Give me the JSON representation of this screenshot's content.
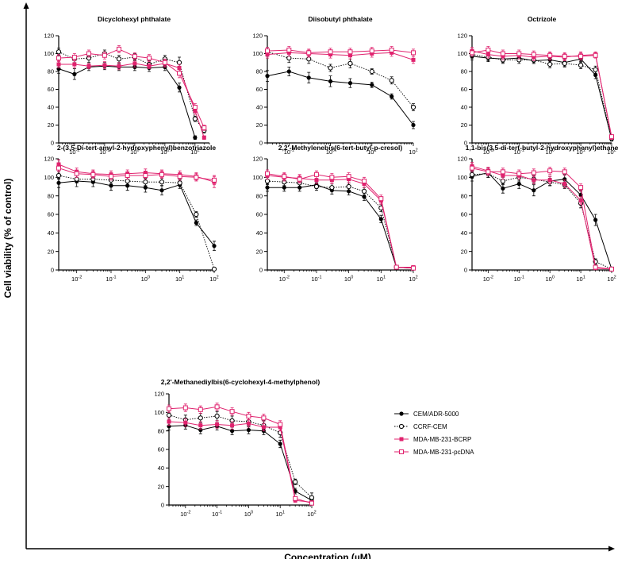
{
  "figure": {
    "ylabel": "Cell viability (% of control)",
    "xlabel": "Concentration (µM)"
  },
  "legend": [
    {
      "name": "CEM/ADR-5000",
      "color": "#000000",
      "marker": "filled-circle",
      "line": "solid"
    },
    {
      "name": "CCRF-CEM",
      "color": "#000000",
      "marker": "open-circle",
      "line": "dotted"
    },
    {
      "name": "MDA-MB-231-BCRP",
      "color": "#e0226e",
      "marker": "filled-square",
      "line": "solid"
    },
    {
      "name": "MDA-MB-231-pcDNA",
      "color": "#e0226e",
      "marker": "open-square",
      "line": "solid"
    }
  ],
  "chart_data": [
    {
      "type": "line",
      "title": "Dicyclohexyl phthalate",
      "xscale": "log",
      "xlim": [
        0.003,
        300
      ],
      "ylim": [
        0,
        120
      ],
      "yticks": [
        0,
        20,
        40,
        60,
        80,
        100,
        120
      ],
      "xticks": [
        {
          "value": 0.01,
          "base": "10",
          "exp": "-2"
        },
        {
          "value": 0.1,
          "base": "10",
          "exp": "-1"
        },
        {
          "value": 1,
          "base": "10",
          "exp": "0"
        },
        {
          "value": 10,
          "base": "10",
          "exp": "1"
        },
        {
          "value": 100,
          "base": "10",
          "exp": "2"
        }
      ],
      "x": [
        0.003,
        0.01,
        0.03,
        0.1,
        0.3,
        1,
        3,
        10,
        30,
        100,
        200
      ],
      "series": [
        {
          "name": "CEM/ADR-5000",
          "values": [
            83,
            77,
            85,
            86,
            85,
            85,
            84,
            85,
            62,
            6,
            null
          ],
          "errors": [
            5,
            6,
            4,
            4,
            4,
            4,
            4,
            4,
            5,
            2,
            null
          ]
        },
        {
          "name": "CCRF-CEM",
          "values": [
            102,
            94,
            95,
            100,
            94,
            96,
            88,
            94,
            90,
            27,
            14
          ],
          "errors": [
            4,
            4,
            5,
            4,
            4,
            4,
            4,
            4,
            6,
            3,
            3
          ]
        },
        {
          "name": "MDA-MB-231-BCRP",
          "values": [
            88,
            88,
            86,
            87,
            86,
            89,
            86,
            89,
            84,
            36,
            6
          ],
          "errors": [
            4,
            4,
            3,
            4,
            4,
            4,
            3,
            4,
            4,
            4,
            2
          ]
        },
        {
          "name": "MDA-MB-231-pcDNA",
          "values": [
            95,
            96,
            100,
            98,
            105,
            97,
            95,
            90,
            78,
            40,
            17
          ],
          "errors": [
            4,
            4,
            4,
            4,
            4,
            4,
            4,
            4,
            5,
            4,
            3
          ]
        }
      ]
    },
    {
      "type": "line",
      "title": "Diisobutyl phthalate",
      "xscale": "log",
      "xlim": [
        0.03,
        100
      ],
      "ylim": [
        0,
        120
      ],
      "yticks": [
        0,
        20,
        40,
        60,
        80,
        100,
        120
      ],
      "xticks": [
        {
          "value": 0.1,
          "base": "10",
          "exp": "-1"
        },
        {
          "value": 1,
          "base": "10",
          "exp": "0"
        },
        {
          "value": 10,
          "base": "10",
          "exp": "1"
        },
        {
          "value": 100,
          "base": "10",
          "exp": "2"
        }
      ],
      "x": [
        0.03,
        0.1,
        0.3,
        1,
        3,
        10,
        30,
        100
      ],
      "series": [
        {
          "name": "CEM/ADR-5000",
          "values": [
            75,
            80,
            73,
            69,
            67,
            65,
            52,
            20
          ],
          "errors": [
            6,
            5,
            6,
            6,
            5,
            3,
            3,
            4
          ]
        },
        {
          "name": "CCRF-CEM",
          "values": [
            102,
            95,
            94,
            84,
            89,
            80,
            70,
            40
          ],
          "errors": [
            5,
            5,
            5,
            4,
            5,
            3,
            4,
            4
          ]
        },
        {
          "name": "MDA-MB-231-BCRP",
          "values": [
            99,
            101,
            100,
            99,
            98,
            100,
            101,
            93
          ],
          "errors": [
            4,
            4,
            4,
            4,
            4,
            4,
            4,
            4
          ]
        },
        {
          "name": "MDA-MB-231-pcDNA",
          "values": [
            103,
            104,
            101,
            102,
            102,
            103,
            104,
            101
          ],
          "errors": [
            4,
            4,
            4,
            4,
            4,
            4,
            4,
            4
          ]
        }
      ]
    },
    {
      "type": "line",
      "title": "Octrizole",
      "xscale": "log",
      "xlim": [
        0.003,
        100
      ],
      "ylim": [
        0,
        120
      ],
      "yticks": [
        0,
        20,
        40,
        60,
        80,
        100,
        120
      ],
      "xticks": [
        {
          "value": 0.01,
          "base": "10",
          "exp": "-2"
        },
        {
          "value": 0.1,
          "base": "10",
          "exp": "-1"
        },
        {
          "value": 1,
          "base": "10",
          "exp": "0"
        },
        {
          "value": 10,
          "base": "10",
          "exp": "1"
        },
        {
          "value": 100,
          "base": "10",
          "exp": "2"
        }
      ],
      "x": [
        0.003,
        0.01,
        0.03,
        0.1,
        0.3,
        1,
        3,
        10,
        30,
        100
      ],
      "series": [
        {
          "name": "CEM/ADR-5000",
          "values": [
            97,
            95,
            94,
            95,
            92,
            93,
            90,
            94,
            76,
            4
          ],
          "errors": [
            4,
            4,
            4,
            4,
            3,
            4,
            4,
            4,
            4,
            2
          ]
        },
        {
          "name": "CCRF-CEM",
          "values": [
            99,
            96,
            93,
            93,
            93,
            88,
            89,
            87,
            82,
            5
          ],
          "errors": [
            4,
            4,
            4,
            4,
            4,
            4,
            4,
            4,
            4,
            2
          ]
        },
        {
          "name": "MDA-MB-231-BCRP",
          "values": [
            103,
            99,
            97,
            98,
            96,
            97,
            96,
            98,
            99,
            6
          ],
          "errors": [
            4,
            4,
            4,
            4,
            4,
            4,
            4,
            4,
            3,
            2
          ]
        },
        {
          "name": "MDA-MB-231-pcDNA",
          "values": [
            101,
            104,
            100,
            100,
            99,
            98,
            97,
            97,
            98,
            7
          ],
          "errors": [
            4,
            4,
            4,
            4,
            4,
            4,
            4,
            4,
            3,
            2
          ]
        }
      ]
    },
    {
      "type": "line",
      "title": "2-(3,5-Di-tert-amyl-2-hydroxyphenyl)benzotriazole",
      "xscale": "log",
      "xlim": [
        0.003,
        100
      ],
      "ylim": [
        0,
        120
      ],
      "yticks": [
        0,
        20,
        40,
        60,
        80,
        100,
        120
      ],
      "xticks": [
        {
          "value": 0.01,
          "base": "10",
          "exp": "-2"
        },
        {
          "value": 0.1,
          "base": "10",
          "exp": "-1"
        },
        {
          "value": 1,
          "base": "10",
          "exp": "0"
        },
        {
          "value": 10,
          "base": "10",
          "exp": "1"
        },
        {
          "value": 100,
          "base": "10",
          "exp": "2"
        }
      ],
      "x": [
        0.003,
        0.01,
        0.03,
        0.1,
        0.3,
        1,
        3,
        10,
        30,
        100
      ],
      "series": [
        {
          "name": "CEM/ADR-5000",
          "values": [
            94,
            96,
            95,
            91,
            91,
            89,
            86,
            92,
            51,
            26
          ],
          "errors": [
            5,
            6,
            5,
            5,
            5,
            5,
            5,
            4,
            3,
            5
          ]
        },
        {
          "name": "CCRF-CEM",
          "values": [
            102,
            98,
            98,
            97,
            96,
            95,
            95,
            94,
            60,
            1
          ],
          "errors": [
            4,
            4,
            4,
            4,
            4,
            4,
            4,
            4,
            3,
            1
          ]
        },
        {
          "name": "MDA-MB-231-BCRP",
          "values": [
            114,
            106,
            104,
            103,
            104,
            105,
            104,
            103,
            101,
            95
          ],
          "errors": [
            5,
            4,
            4,
            4,
            4,
            4,
            4,
            4,
            4,
            6
          ]
        },
        {
          "name": "MDA-MB-231-pcDNA",
          "values": [
            110,
            104,
            103,
            101,
            102,
            102,
            103,
            101,
            100,
            97
          ],
          "errors": [
            4,
            4,
            4,
            4,
            4,
            4,
            4,
            4,
            4,
            5
          ]
        }
      ]
    },
    {
      "type": "line",
      "title": "2,2'-Methylenebis(6-tert-butyl-p-cresol)",
      "xscale": "log",
      "xlim": [
        0.003,
        100
      ],
      "ylim": [
        0,
        120
      ],
      "yticks": [
        0,
        20,
        40,
        60,
        80,
        100,
        120
      ],
      "xticks": [
        {
          "value": 0.01,
          "base": "10",
          "exp": "-2"
        },
        {
          "value": 0.1,
          "base": "10",
          "exp": "-1"
        },
        {
          "value": 1,
          "base": "10",
          "exp": "0"
        },
        {
          "value": 10,
          "base": "10",
          "exp": "1"
        },
        {
          "value": 100,
          "base": "10",
          "exp": "2"
        }
      ],
      "x": [
        0.003,
        0.01,
        0.03,
        0.1,
        0.3,
        1,
        3,
        10,
        30,
        100
      ],
      "series": [
        {
          "name": "CEM/ADR-5000",
          "values": [
            89,
            89,
            89,
            92,
            86,
            85,
            79,
            55,
            3,
            2
          ],
          "errors": [
            4,
            4,
            4,
            4,
            4,
            4,
            4,
            4,
            1,
            1
          ]
        },
        {
          "name": "CCRF-CEM",
          "values": [
            96,
            95,
            94,
            90,
            89,
            90,
            85,
            67,
            3,
            2
          ],
          "errors": [
            4,
            4,
            4,
            4,
            4,
            4,
            4,
            4,
            1,
            1
          ]
        },
        {
          "name": "MDA-MB-231-BCRP",
          "values": [
            102,
            100,
            99,
            97,
            97,
            98,
            93,
            75,
            3,
            3
          ],
          "errors": [
            4,
            4,
            4,
            4,
            4,
            4,
            4,
            4,
            1,
            1
          ]
        },
        {
          "name": "MDA-MB-231-pcDNA",
          "values": [
            104,
            101,
            98,
            103,
            100,
            101,
            96,
            77,
            3,
            2
          ],
          "errors": [
            4,
            4,
            4,
            4,
            4,
            4,
            4,
            4,
            1,
            1
          ]
        }
      ]
    },
    {
      "type": "line",
      "title": "1,1-bis(3,5-di-tert-butyl-2-hydroxyphenyl)ethane",
      "xscale": "log",
      "xlim": [
        0.003,
        100
      ],
      "ylim": [
        0,
        120
      ],
      "yticks": [
        0,
        20,
        40,
        60,
        80,
        100,
        120
      ],
      "xticks": [
        {
          "value": 0.01,
          "base": "10",
          "exp": "-2"
        },
        {
          "value": 0.1,
          "base": "10",
          "exp": "-1"
        },
        {
          "value": 1,
          "base": "10",
          "exp": "0"
        },
        {
          "value": 10,
          "base": "10",
          "exp": "1"
        },
        {
          "value": 100,
          "base": "10",
          "exp": "2"
        }
      ],
      "x": [
        0.003,
        0.01,
        0.03,
        0.1,
        0.3,
        1,
        3,
        10,
        30,
        100
      ],
      "series": [
        {
          "name": "CEM/ADR-5000",
          "values": [
            101,
            105,
            88,
            93,
            86,
            96,
            98,
            81,
            54,
            1
          ],
          "errors": [
            5,
            5,
            5,
            5,
            6,
            5,
            5,
            5,
            6,
            1
          ]
        },
        {
          "name": "CCRF-CEM",
          "values": [
            103,
            104,
            96,
            100,
            98,
            95,
            92,
            72,
            9,
            1
          ],
          "errors": [
            4,
            4,
            4,
            4,
            4,
            4,
            4,
            5,
            3,
            1
          ]
        },
        {
          "name": "MDA-MB-231-BCRP",
          "values": [
            112,
            107,
            102,
            102,
            97,
            97,
            93,
            75,
            2,
            1
          ],
          "errors": [
            4,
            4,
            4,
            4,
            4,
            4,
            4,
            4,
            1,
            1
          ]
        },
        {
          "name": "MDA-MB-231-pcDNA",
          "values": [
            110,
            106,
            106,
            104,
            105,
            107,
            106,
            89,
            3,
            1
          ],
          "errors": [
            4,
            4,
            4,
            4,
            4,
            4,
            4,
            4,
            1,
            1
          ]
        }
      ]
    },
    {
      "type": "line",
      "title": "2,2'-Methanediylbis(6-cyclohexyl-4-methylphenol)",
      "xscale": "log",
      "xlim": [
        0.003,
        100
      ],
      "ylim": [
        0,
        120
      ],
      "yticks": [
        0,
        20,
        40,
        60,
        80,
        100,
        120
      ],
      "xticks": [
        {
          "value": 0.01,
          "base": "10",
          "exp": "-2"
        },
        {
          "value": 0.1,
          "base": "10",
          "exp": "-1"
        },
        {
          "value": 1,
          "base": "10",
          "exp": "0"
        },
        {
          "value": 10,
          "base": "10",
          "exp": "1"
        },
        {
          "value": 100,
          "base": "10",
          "exp": "2"
        }
      ],
      "x": [
        0.003,
        0.01,
        0.03,
        0.1,
        0.3,
        1,
        3,
        10,
        30,
        100
      ],
      "series": [
        {
          "name": "CEM/ADR-5000",
          "values": [
            85,
            86,
            81,
            85,
            80,
            81,
            80,
            66,
            15,
            5
          ],
          "errors": [
            4,
            4,
            4,
            4,
            4,
            4,
            4,
            4,
            3,
            2
          ]
        },
        {
          "name": "CCRF-CEM",
          "values": [
            97,
            92,
            94,
            96,
            91,
            90,
            86,
            78,
            25,
            8
          ],
          "errors": [
            5,
            5,
            5,
            5,
            5,
            5,
            5,
            5,
            3,
            5
          ]
        },
        {
          "name": "MDA-MB-231-BCRP",
          "values": [
            90,
            89,
            86,
            87,
            86,
            88,
            84,
            84,
            5,
            3
          ],
          "errors": [
            4,
            4,
            4,
            4,
            4,
            4,
            4,
            4,
            2,
            1
          ]
        },
        {
          "name": "MDA-MB-231-pcDNA",
          "values": [
            104,
            105,
            103,
            106,
            101,
            96,
            94,
            87,
            7,
            2
          ],
          "errors": [
            4,
            4,
            4,
            4,
            4,
            4,
            4,
            4,
            2,
            1
          ]
        }
      ]
    }
  ]
}
